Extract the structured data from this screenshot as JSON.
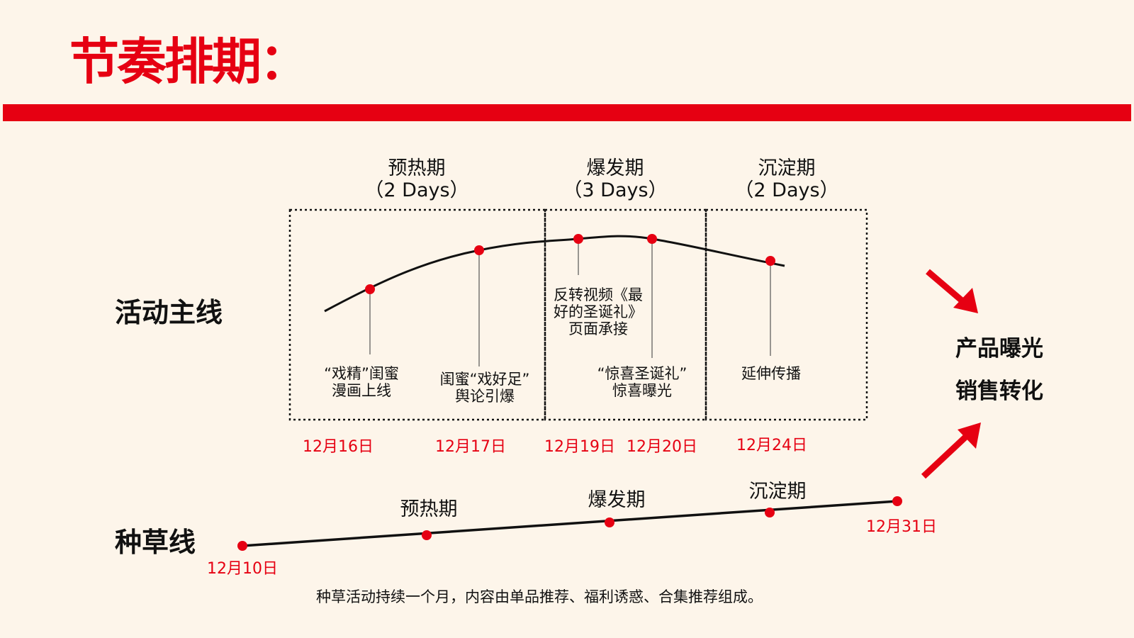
{
  "title": "节奏排期：",
  "main_line": {
    "label": "活动主线",
    "phases": [
      {
        "name": "预热期",
        "duration": "（2 Days）"
      },
      {
        "name": "爆发期",
        "duration": "（3 Days）"
      },
      {
        "name": "沉淀期",
        "duration": "（2 Days）"
      }
    ],
    "events": [
      {
        "line1": "“戏精”闺蜜",
        "line2": "漫画上线",
        "line3": "",
        "date": "12月16日"
      },
      {
        "line1": "闺蜜“戏好足”",
        "line2": "舆论引爆",
        "line3": "",
        "date": "12月17日"
      },
      {
        "line1": "反转视频《最",
        "line2": "好的圣诞礼》",
        "line3": "页面承接",
        "date": "12月19日"
      },
      {
        "line1": "“惊喜圣诞礼”",
        "line2": "惊喜曝光",
        "line3": "",
        "date": "12月20日"
      },
      {
        "line1": "延伸传播",
        "line2": "",
        "line3": "",
        "date": "12月24日"
      }
    ]
  },
  "grass_line": {
    "label": "种草线",
    "start_date": "12月10日",
    "end_date": "12月31日",
    "phases": [
      "预热期",
      "爆发期",
      "沉淀期"
    ],
    "description": "种草活动持续一个月，内容由单品推荐、福利诱惑、合集推荐组成。"
  },
  "results": [
    "产品曝光",
    "销售转化"
  ],
  "colors": {
    "accent": "#e60012",
    "background": "#fdf5ea",
    "line": "#111111"
  }
}
